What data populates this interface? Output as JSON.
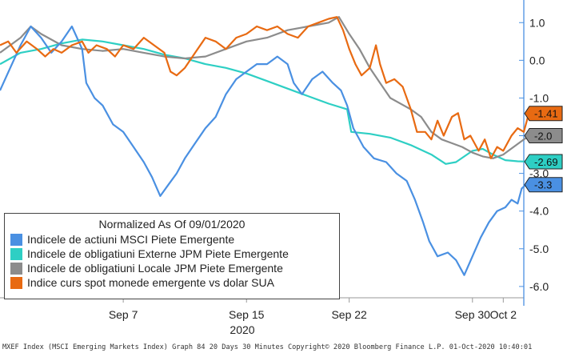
{
  "chart_data": {
    "type": "line",
    "title": "",
    "xlabel": "2020",
    "ylabel": "",
    "ylim": [
      -6.3,
      1.6
    ],
    "y_ticks": [
      "1.0",
      "0.0",
      "-1.0",
      "-2.0",
      "-3.0",
      "-4.0",
      "-5.0",
      "-6.0"
    ],
    "x_ticks": [
      {
        "label": "Sep 7",
        "t": 5
      },
      {
        "label": "Sep 15",
        "t": 11
      },
      {
        "label": "Sep 22",
        "t": 16
      },
      {
        "label": "Sep 30",
        "t": 22
      },
      {
        "label": "Oct 2",
        "t": 23.5
      }
    ],
    "x_range": [
      -1.0,
      24.5
    ],
    "legend": {
      "title": "Normalized As Of 09/01/2020",
      "position": "bottom-left",
      "entries": [
        {
          "label": "Indicele de actiuni MSCI Piete Emergente",
          "color": "#4a90e2"
        },
        {
          "label": "Indicele de obligatiuni Externe JPM Piete Emergente",
          "color": "#2ecfc4"
        },
        {
          "label": "Indicele de obligatiuni Locale JPM Piete Emergente",
          "color": "#8c8c8c"
        },
        {
          "label": "Indice curs spot monede emergente vs dolar SUA",
          "color": "#e86a12"
        }
      ]
    },
    "series": [
      {
        "name": "Indicele de actiuni MSCI Piete Emergente",
        "color": "#4a90e2",
        "last_label": "-3.3",
        "points": [
          [
            -1,
            -0.8
          ],
          [
            -0.5,
            -0.2
          ],
          [
            0,
            0.4
          ],
          [
            0.5,
            0.9
          ],
          [
            1,
            0.6
          ],
          [
            1.5,
            0.2
          ],
          [
            2,
            0.5
          ],
          [
            2.5,
            0.9
          ],
          [
            3,
            0.3
          ],
          [
            3.2,
            -0.6
          ],
          [
            3.6,
            -1.0
          ],
          [
            4,
            -1.2
          ],
          [
            4.5,
            -1.7
          ],
          [
            5,
            -1.9
          ],
          [
            5.5,
            -2.3
          ],
          [
            6,
            -2.7
          ],
          [
            6.4,
            -3.1
          ],
          [
            6.8,
            -3.6
          ],
          [
            7.2,
            -3.3
          ],
          [
            7.6,
            -3.0
          ],
          [
            8,
            -2.6
          ],
          [
            8.5,
            -2.2
          ],
          [
            9,
            -1.8
          ],
          [
            9.5,
            -1.5
          ],
          [
            10,
            -0.9
          ],
          [
            10.5,
            -0.5
          ],
          [
            11,
            -0.3
          ],
          [
            11.5,
            -0.1
          ],
          [
            12,
            -0.1
          ],
          [
            12.5,
            0.1
          ],
          [
            13,
            -0.1
          ],
          [
            13.3,
            -0.6
          ],
          [
            13.7,
            -0.9
          ],
          [
            14.2,
            -0.5
          ],
          [
            14.7,
            -0.3
          ],
          [
            15.2,
            -0.6
          ],
          [
            15.6,
            -0.8
          ],
          [
            15.9,
            -1.2
          ],
          [
            16.2,
            -1.8
          ],
          [
            16.7,
            -2.3
          ],
          [
            17.2,
            -2.6
          ],
          [
            17.8,
            -2.7
          ],
          [
            18.3,
            -3.0
          ],
          [
            18.8,
            -3.2
          ],
          [
            19.2,
            -3.7
          ],
          [
            19.6,
            -4.3
          ],
          [
            19.9,
            -4.8
          ],
          [
            20.3,
            -5.2
          ],
          [
            20.8,
            -5.1
          ],
          [
            21.2,
            -5.3
          ],
          [
            21.6,
            -5.7
          ],
          [
            22,
            -5.2
          ],
          [
            22.4,
            -4.7
          ],
          [
            22.8,
            -4.3
          ],
          [
            23.2,
            -4.0
          ],
          [
            23.6,
            -3.9
          ],
          [
            23.9,
            -3.7
          ],
          [
            24.2,
            -3.8
          ],
          [
            24.4,
            -3.4
          ],
          [
            24.6,
            -3.3
          ],
          [
            24.8,
            -3.3
          ]
        ]
      },
      {
        "name": "Indicele de obligatiuni Externe JPM Piete Emergente",
        "color": "#2ecfc4",
        "last_label": "-2.69",
        "points": [
          [
            -1,
            -0.1
          ],
          [
            0,
            0.2
          ],
          [
            1,
            0.3
          ],
          [
            2,
            0.45
          ],
          [
            3,
            0.55
          ],
          [
            4,
            0.5
          ],
          [
            5,
            0.4
          ],
          [
            6,
            0.3
          ],
          [
            7,
            0.15
          ],
          [
            8,
            0.05
          ],
          [
            9,
            -0.1
          ],
          [
            10,
            -0.2
          ],
          [
            11,
            -0.35
          ],
          [
            12,
            -0.55
          ],
          [
            13,
            -0.75
          ],
          [
            14,
            -0.95
          ],
          [
            15,
            -1.15
          ],
          [
            15.9,
            -1.3
          ],
          [
            16.1,
            -1.9
          ],
          [
            17,
            -1.95
          ],
          [
            18,
            -2.05
          ],
          [
            19,
            -2.25
          ],
          [
            20,
            -2.5
          ],
          [
            20.7,
            -2.75
          ],
          [
            21.2,
            -2.7
          ],
          [
            22,
            -2.4
          ],
          [
            22.5,
            -2.35
          ],
          [
            23,
            -2.5
          ],
          [
            23.6,
            -2.65
          ],
          [
            24.2,
            -2.68
          ],
          [
            24.8,
            -2.69
          ]
        ]
      },
      {
        "name": "Indicele de obligatiuni Locale JPM Piete Emergente",
        "color": "#8c8c8c",
        "last_label": "-2.0",
        "points": [
          [
            -1,
            0.2
          ],
          [
            0,
            0.6
          ],
          [
            0.5,
            0.9
          ],
          [
            1,
            0.7
          ],
          [
            2,
            0.4
          ],
          [
            3,
            0.3
          ],
          [
            4,
            0.25
          ],
          [
            5,
            0.3
          ],
          [
            6,
            0.2
          ],
          [
            7,
            0.1
          ],
          [
            8,
            0.05
          ],
          [
            9,
            0.1
          ],
          [
            10,
            0.3
          ],
          [
            11,
            0.5
          ],
          [
            12,
            0.6
          ],
          [
            13,
            0.8
          ],
          [
            14,
            0.9
          ],
          [
            15,
            1.0
          ],
          [
            15.5,
            1.15
          ],
          [
            16,
            0.7
          ],
          [
            16.5,
            0.3
          ],
          [
            17,
            -0.2
          ],
          [
            17.5,
            -0.6
          ],
          [
            18,
            -1.0
          ],
          [
            19,
            -1.3
          ],
          [
            19.5,
            -1.5
          ],
          [
            20,
            -1.9
          ],
          [
            20.5,
            -2.1
          ],
          [
            21,
            -2.2
          ],
          [
            21.5,
            -2.3
          ],
          [
            22,
            -2.45
          ],
          [
            22.5,
            -2.55
          ],
          [
            23,
            -2.6
          ],
          [
            23.5,
            -2.5
          ],
          [
            24,
            -2.3
          ],
          [
            24.5,
            -2.1
          ],
          [
            24.8,
            -2.0
          ]
        ]
      },
      {
        "name": "Indice curs spot monede emergente vs dolar SUA",
        "color": "#e86a12",
        "last_label": "-1.41",
        "points": [
          [
            -1,
            0.4
          ],
          [
            -0.6,
            0.5
          ],
          [
            -0.2,
            0.2
          ],
          [
            0.3,
            0.5
          ],
          [
            0.8,
            0.3
          ],
          [
            1.2,
            0.1
          ],
          [
            1.6,
            0.3
          ],
          [
            2,
            0.2
          ],
          [
            2.5,
            0.4
          ],
          [
            3,
            0.5
          ],
          [
            3.3,
            0.2
          ],
          [
            3.7,
            0.4
          ],
          [
            4.2,
            0.3
          ],
          [
            4.6,
            0.1
          ],
          [
            5,
            0.4
          ],
          [
            5.5,
            0.3
          ],
          [
            6,
            0.6
          ],
          [
            6.5,
            0.4
          ],
          [
            7,
            0.2
          ],
          [
            7.3,
            -0.3
          ],
          [
            7.6,
            -0.4
          ],
          [
            8,
            -0.2
          ],
          [
            8.5,
            0.2
          ],
          [
            9,
            0.6
          ],
          [
            9.5,
            0.5
          ],
          [
            10,
            0.3
          ],
          [
            10.5,
            0.6
          ],
          [
            11,
            0.7
          ],
          [
            11.5,
            0.9
          ],
          [
            12,
            0.8
          ],
          [
            12.5,
            0.9
          ],
          [
            13,
            0.7
          ],
          [
            13.5,
            0.6
          ],
          [
            14,
            0.9
          ],
          [
            14.5,
            1.0
          ],
          [
            15,
            1.1
          ],
          [
            15.4,
            1.15
          ],
          [
            15.7,
            0.8
          ],
          [
            16,
            0.3
          ],
          [
            16.3,
            -0.1
          ],
          [
            16.6,
            -0.4
          ],
          [
            17,
            -0.2
          ],
          [
            17.3,
            0.4
          ],
          [
            17.5,
            -0.1
          ],
          [
            17.8,
            -0.6
          ],
          [
            18.2,
            -0.5
          ],
          [
            18.6,
            -0.7
          ],
          [
            19,
            -1.3
          ],
          [
            19.3,
            -1.9
          ],
          [
            19.7,
            -1.9
          ],
          [
            20,
            -2.1
          ],
          [
            20.3,
            -1.6
          ],
          [
            20.6,
            -2.0
          ],
          [
            21,
            -1.5
          ],
          [
            21.3,
            -1.4
          ],
          [
            21.6,
            -2.1
          ],
          [
            21.9,
            -2.0
          ],
          [
            22.3,
            -2.4
          ],
          [
            22.6,
            -2.1
          ],
          [
            22.9,
            -2.6
          ],
          [
            23.2,
            -2.3
          ],
          [
            23.5,
            -2.4
          ],
          [
            23.9,
            -2.0
          ],
          [
            24.2,
            -1.8
          ],
          [
            24.5,
            -1.9
          ],
          [
            24.7,
            -1.5
          ],
          [
            24.8,
            -1.41
          ]
        ]
      }
    ]
  },
  "footer": "MXEF Index (MSCI Emerging Markets Index) Graph 84 20 Days 30 Minutes  Copyright© 2020 Bloomberg Finance L.P.  01-Oct-2020 10:40:01"
}
